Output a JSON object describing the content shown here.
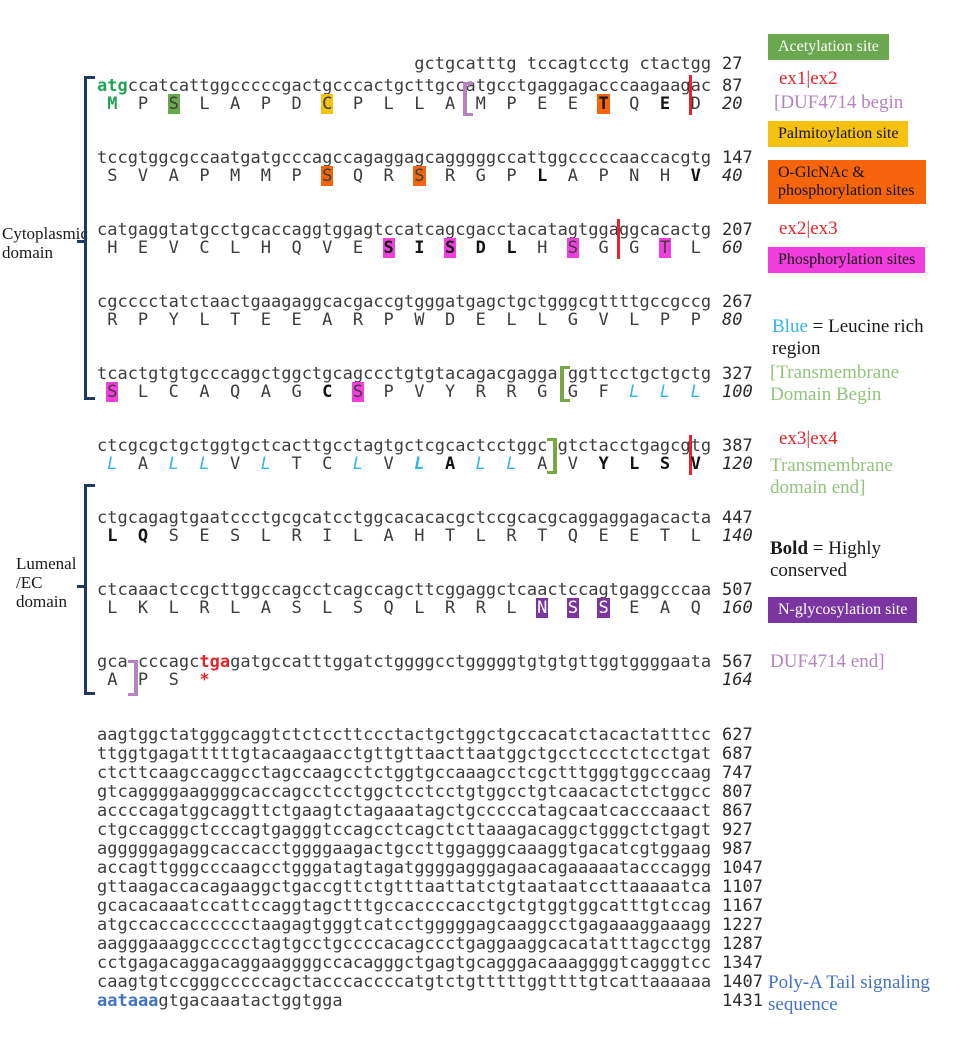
{
  "colors": {
    "green": "#6aa84f",
    "yellow": "#f6c20f",
    "orange": "#f4650c",
    "mag": "#f23ddf",
    "purple": "#7a35a0",
    "red": "#e3242b",
    "lilac": "#b583c0",
    "ltgreen": "#93c47d",
    "ltgreen2": "#7aa646",
    "cyan": "#35b5ea",
    "blue": "#4472c4",
    "navy": "#1f3864",
    "start": "#21a356"
  },
  "domains": {
    "cytoplasmic": "Cytoplasmic domain",
    "lumenal": "Lumenal /EC domain"
  },
  "legend": {
    "acetylation": "Acetylation site",
    "ex1_ex2": "ex1|ex2",
    "duf_begin": "[DUF4714 begin",
    "palmitoylation": "Palmitoylation site",
    "oglcnac": "O-GlcNAc & phosphorylation sites",
    "ex2_ex3": "ex2|ex3",
    "phosphorylation": "Phosphorylation sites",
    "blue_term": "Blue",
    "blue_rest": " = Leucine rich region",
    "tm_begin": "[Transmembrane Domain Begin",
    "ex3_ex4": "ex3|ex4",
    "tm_end": "Transmembrane domain end]",
    "bold_term": "Bold",
    "bold_rest": " = Highly conserved",
    "nglyc": "N-glycosylation site",
    "duf_end": "DUF4714 end]",
    "polya": "Poly-A Tail signaling sequence"
  },
  "sequence": {
    "header": {
      "text": "                               gctgcatttg tccagtcctg ctactgg",
      "num": "27"
    },
    "blocks": [
      {
        "d": [
          [
            "atg",
            "start"
          ],
          [
            "ccatcattggcccccgactgcccactgcttgccatgcctgaggagacccaagaag",
            ""
          ],
          [
            "",
            "mk-red"
          ],
          [
            "ac",
            ""
          ]
        ],
        "dn": "87",
        "p": [
          [
            "M",
            "start"
          ],
          [
            "P",
            ""
          ],
          [
            "S",
            "hl-green"
          ],
          [
            "L",
            ""
          ],
          [
            "A",
            ""
          ],
          [
            "P",
            ""
          ],
          [
            "D",
            ""
          ],
          [
            "C",
            "hl-yellow"
          ],
          [
            "P",
            ""
          ],
          [
            "L",
            ""
          ],
          [
            "L",
            ""
          ],
          [
            "A",
            ""
          ],
          [
            "",
            "mk0 mk-popen"
          ],
          [
            "M",
            ""
          ],
          [
            "P",
            ""
          ],
          [
            "E",
            ""
          ],
          [
            "E",
            ""
          ],
          [
            "T",
            "hl-or b"
          ],
          [
            "Q",
            ""
          ],
          [
            "E",
            "b"
          ],
          [
            "D",
            ""
          ]
        ],
        "pn": "20"
      },
      {
        "d": [
          [
            "tccgtggcgccaatgatgcccagccagaggagcagggggccattggcccccaaccacgtg",
            ""
          ]
        ],
        "dn": "147",
        "p": [
          [
            "S",
            ""
          ],
          [
            "V",
            ""
          ],
          [
            "A",
            ""
          ],
          [
            "P",
            ""
          ],
          [
            "M",
            ""
          ],
          [
            "M",
            ""
          ],
          [
            "P",
            ""
          ],
          [
            "S",
            "hl-or"
          ],
          [
            "Q",
            ""
          ],
          [
            "R",
            ""
          ],
          [
            "S",
            "hl-or"
          ],
          [
            "R",
            ""
          ],
          [
            "G",
            ""
          ],
          [
            "P",
            ""
          ],
          [
            "L",
            "b"
          ],
          [
            "A",
            ""
          ],
          [
            "P",
            ""
          ],
          [
            "N",
            ""
          ],
          [
            "H",
            ""
          ],
          [
            "V",
            "b"
          ]
        ],
        "pn": "40"
      },
      {
        "d": [
          [
            "catgaggtatgcctgcaccaggtggagtccatcagcgacctacatagtgga",
            ""
          ],
          [
            "",
            "mk-red"
          ],
          [
            "ggcacactg",
            ""
          ]
        ],
        "dn": "207",
        "p": [
          [
            "H",
            ""
          ],
          [
            "E",
            ""
          ],
          [
            "V",
            ""
          ],
          [
            "C",
            ""
          ],
          [
            "L",
            ""
          ],
          [
            "H",
            ""
          ],
          [
            "Q",
            ""
          ],
          [
            "V",
            ""
          ],
          [
            "E",
            ""
          ],
          [
            "S",
            "hl-mag b"
          ],
          [
            "I",
            "b"
          ],
          [
            "S",
            "hl-mag b"
          ],
          [
            "D",
            "b"
          ],
          [
            "L",
            "b"
          ],
          [
            "H",
            ""
          ],
          [
            "S",
            "hl-mag"
          ],
          [
            "G",
            ""
          ],
          [
            "G",
            ""
          ],
          [
            "T",
            "hl-mag"
          ],
          [
            "L",
            ""
          ]
        ],
        "pn": "60"
      },
      {
        "d": [
          [
            "cgcccctatctaactgaagaggcacgaccgtgggatgagctgctgggcgttttgccgccg",
            ""
          ]
        ],
        "dn": "267",
        "p": [
          [
            "R",
            ""
          ],
          [
            "P",
            ""
          ],
          [
            "Y",
            ""
          ],
          [
            "L",
            ""
          ],
          [
            "T",
            ""
          ],
          [
            "E",
            ""
          ],
          [
            "E",
            ""
          ],
          [
            "A",
            ""
          ],
          [
            "R",
            ""
          ],
          [
            "P",
            ""
          ],
          [
            "W",
            ""
          ],
          [
            "D",
            ""
          ],
          [
            "E",
            ""
          ],
          [
            "L",
            ""
          ],
          [
            "L",
            ""
          ],
          [
            "G",
            ""
          ],
          [
            "V",
            ""
          ],
          [
            "L",
            ""
          ],
          [
            "P",
            ""
          ],
          [
            "P",
            ""
          ]
        ],
        "pn": "80"
      },
      {
        "d": [
          [
            "tcactgtgtgcccaggctggctgcagccctgtgtacagacgagga",
            ""
          ],
          [
            "",
            "mkc mk-gopen"
          ],
          [
            "ggttcctgctgctg",
            ""
          ]
        ],
        "dn": "327",
        "p": [
          [
            "S",
            "hl-mag"
          ],
          [
            "L",
            ""
          ],
          [
            "C",
            ""
          ],
          [
            "A",
            ""
          ],
          [
            "Q",
            ""
          ],
          [
            "A",
            ""
          ],
          [
            "G",
            ""
          ],
          [
            "C",
            "b"
          ],
          [
            "S",
            "hl-mag"
          ],
          [
            "P",
            ""
          ],
          [
            "V",
            ""
          ],
          [
            "Y",
            ""
          ],
          [
            "R",
            ""
          ],
          [
            "R",
            ""
          ],
          [
            "G",
            ""
          ],
          [
            "G",
            ""
          ],
          [
            "F",
            ""
          ],
          [
            "L",
            "cy"
          ],
          [
            "L",
            "cy"
          ],
          [
            "L",
            "cy"
          ]
        ],
        "pn": "100"
      },
      {
        "d": [
          [
            "ctcgcgctgctggtgctcacttgcctagtgctcgcactcctggc",
            ""
          ],
          [
            "",
            "mkc mk-gclose"
          ],
          [
            "gtctacctgagcg",
            ""
          ],
          [
            "",
            "mk-red"
          ],
          [
            "tg",
            ""
          ]
        ],
        "dn": "387",
        "p": [
          [
            "L",
            "cy"
          ],
          [
            "A",
            ""
          ],
          [
            "L",
            "cy"
          ],
          [
            "L",
            "cy"
          ],
          [
            "V",
            ""
          ],
          [
            "L",
            "cy"
          ],
          [
            "T",
            ""
          ],
          [
            "C",
            ""
          ],
          [
            "L",
            "cy"
          ],
          [
            "V",
            ""
          ],
          [
            "L",
            "cy b"
          ],
          [
            "A",
            "b"
          ],
          [
            "L",
            "cy"
          ],
          [
            "L",
            "cy"
          ],
          [
            "A",
            ""
          ],
          [
            "V",
            ""
          ],
          [
            "Y",
            "b"
          ],
          [
            "L",
            "b"
          ],
          [
            "S",
            "b"
          ],
          [
            "V",
            "b"
          ]
        ],
        "pn": "120"
      },
      {
        "d": [
          [
            "ctgcagagtgaatccctgcgcatcctggcacacacgctccgcacgcaggaggagacacta",
            ""
          ]
        ],
        "dn": "447",
        "p": [
          [
            "L",
            "b"
          ],
          [
            "Q",
            "b"
          ],
          [
            "S",
            ""
          ],
          [
            "E",
            ""
          ],
          [
            "S",
            ""
          ],
          [
            "L",
            ""
          ],
          [
            "R",
            ""
          ],
          [
            "I",
            ""
          ],
          [
            "L",
            ""
          ],
          [
            "A",
            ""
          ],
          [
            "H",
            ""
          ],
          [
            "T",
            ""
          ],
          [
            "L",
            ""
          ],
          [
            "R",
            ""
          ],
          [
            "T",
            ""
          ],
          [
            "Q",
            ""
          ],
          [
            "E",
            ""
          ],
          [
            "E",
            ""
          ],
          [
            "T",
            ""
          ],
          [
            "L",
            ""
          ]
        ],
        "pn": "140"
      },
      {
        "d": [
          [
            "ctcaaactccgcttggccagcctcagccagcttcggaggctcaactccagtgaggcccaa",
            ""
          ]
        ],
        "dn": "507",
        "p": [
          [
            "L",
            ""
          ],
          [
            "K",
            ""
          ],
          [
            "L",
            ""
          ],
          [
            "R",
            ""
          ],
          [
            "L",
            ""
          ],
          [
            "A",
            ""
          ],
          [
            "S",
            ""
          ],
          [
            "L",
            ""
          ],
          [
            "S",
            ""
          ],
          [
            "Q",
            ""
          ],
          [
            "L",
            ""
          ],
          [
            "R",
            ""
          ],
          [
            "R",
            ""
          ],
          [
            "L",
            ""
          ],
          [
            "N",
            "hl-pur"
          ],
          [
            "S",
            "hl-pur"
          ],
          [
            "S",
            "hl-pur"
          ],
          [
            "E",
            ""
          ],
          [
            "A",
            ""
          ],
          [
            "Q",
            ""
          ]
        ],
        "pn": "160"
      },
      {
        "d": [
          [
            "gca",
            ""
          ],
          [
            "",
            "mkc mk-pclose"
          ],
          [
            "cccagc",
            ""
          ],
          [
            "tga",
            "stop"
          ],
          [
            "gatgccatttggatctggggcctgggggtgtgtgttggtggggaata",
            ""
          ]
        ],
        "dn": "567",
        "p": [
          [
            "A",
            ""
          ],
          [
            "P",
            ""
          ],
          [
            "S",
            ""
          ],
          [
            "*",
            "star"
          ]
        ],
        "pn": "164"
      }
    ],
    "utr": [
      {
        "p": [
          [
            "aagtggctatgggcaggtctctccttccctactgctggctgccacatctacactatttcc",
            ""
          ]
        ],
        "n": "627"
      },
      {
        "p": [
          [
            "ttggtgagatttttgtacaagaacctgttgttaacttaatggctgcctccctctcctgat",
            ""
          ]
        ],
        "n": "687"
      },
      {
        "p": [
          [
            "ctcttcaagccaggcctagccaagcctctggtgccaaagcctcgctttgggtggcccaag",
            ""
          ]
        ],
        "n": "747"
      },
      {
        "p": [
          [
            "gtcaggggaaggggcaccagcctcctggctcctcctgtggcctgtcaacactctctggcc",
            ""
          ]
        ],
        "n": "807"
      },
      {
        "p": [
          [
            "accccagatggcaggttctgaagtctagaaatagctgcccccatagcaatcacccaaact",
            ""
          ]
        ],
        "n": "867"
      },
      {
        "p": [
          [
            "ctgccagggctcccagtgagggtccagcctcagctcttaaagacaggctgggctctgagt",
            ""
          ]
        ],
        "n": "927"
      },
      {
        "p": [
          [
            "agggggagaggcaccacctggggaagactgccttggagggcaaaggtgacatcgtggaag",
            ""
          ]
        ],
        "n": "987"
      },
      {
        "p": [
          [
            "accagttgggcccaagcctgggatagtagatggggagggagaacagaaaaatacccaggg",
            ""
          ]
        ],
        "n": "1047"
      },
      {
        "p": [
          [
            "gttaagaccacagaaggctgaccgttctgtttaattatctgtaataatccttaaaaatca",
            ""
          ]
        ],
        "n": "1107"
      },
      {
        "p": [
          [
            "gcacacaaatccattccaggtagctttgccaccccacctgctgtggtggcatttgtccag",
            ""
          ]
        ],
        "n": "1167"
      },
      {
        "p": [
          [
            "atgccaccacccccctaagagtgggtcatcctgggggagcaaggcctgagaaaggaaagg",
            ""
          ]
        ],
        "n": "1227"
      },
      {
        "p": [
          [
            "aagggaaaggccccctagtgcctgccccacagccctgaggaaggcacatatttagcctgg",
            ""
          ]
        ],
        "n": "1287"
      },
      {
        "p": [
          [
            "cctgagacaggacaggaaggggccacagggctgagtgcagggacaaaggggtcagggtcc",
            ""
          ]
        ],
        "n": "1347"
      },
      {
        "p": [
          [
            "caagtgtccgggcccccagctacccaccccatgtctgtttttggttttgtcattaaaaaa",
            ""
          ]
        ],
        "n": "1407"
      },
      {
        "p": [
          [
            "aataaa",
            "polya"
          ],
          [
            "gtgacaaatactggtgga",
            ""
          ]
        ],
        "n": "1431"
      }
    ]
  }
}
